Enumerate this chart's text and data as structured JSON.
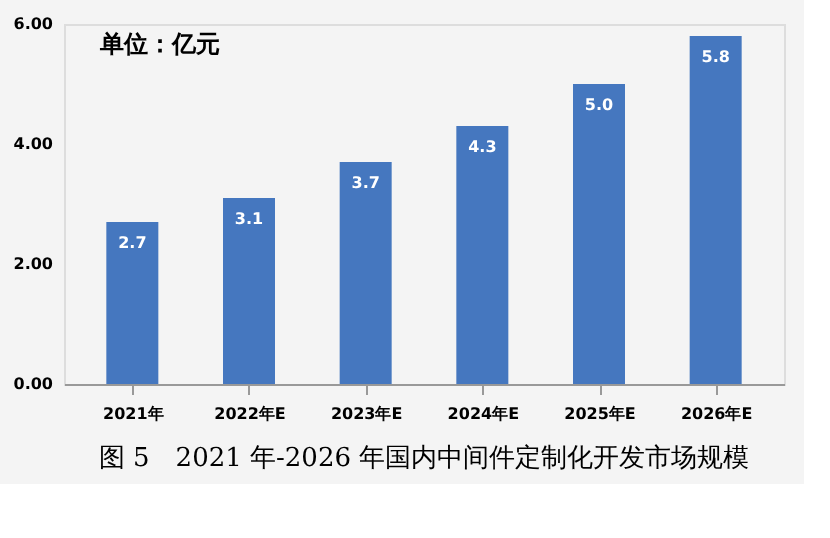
{
  "chart_data": {
    "type": "bar",
    "title": "图 5　2021 年-2026 年国内中间件定制化开发市场规模",
    "annotations": [
      "单位：亿元"
    ],
    "categories": [
      "2021年",
      "2022年E",
      "2023年E",
      "2024年E",
      "2025年E",
      "2026年E"
    ],
    "values": [
      2.7,
      3.1,
      3.7,
      4.3,
      5.0,
      5.8
    ],
    "color": "#4577bf",
    "ylim": [
      0,
      6
    ],
    "yticks": [
      {
        "value": 0,
        "label": "0.00"
      },
      {
        "value": 2,
        "label": "2.00"
      },
      {
        "value": 4,
        "label": "4.00"
      },
      {
        "value": 6,
        "label": "6.00"
      }
    ],
    "value_labels": [
      "2.7",
      "3.1",
      "3.7",
      "4.3",
      "5.0",
      "5.8"
    ],
    "grid": false
  }
}
